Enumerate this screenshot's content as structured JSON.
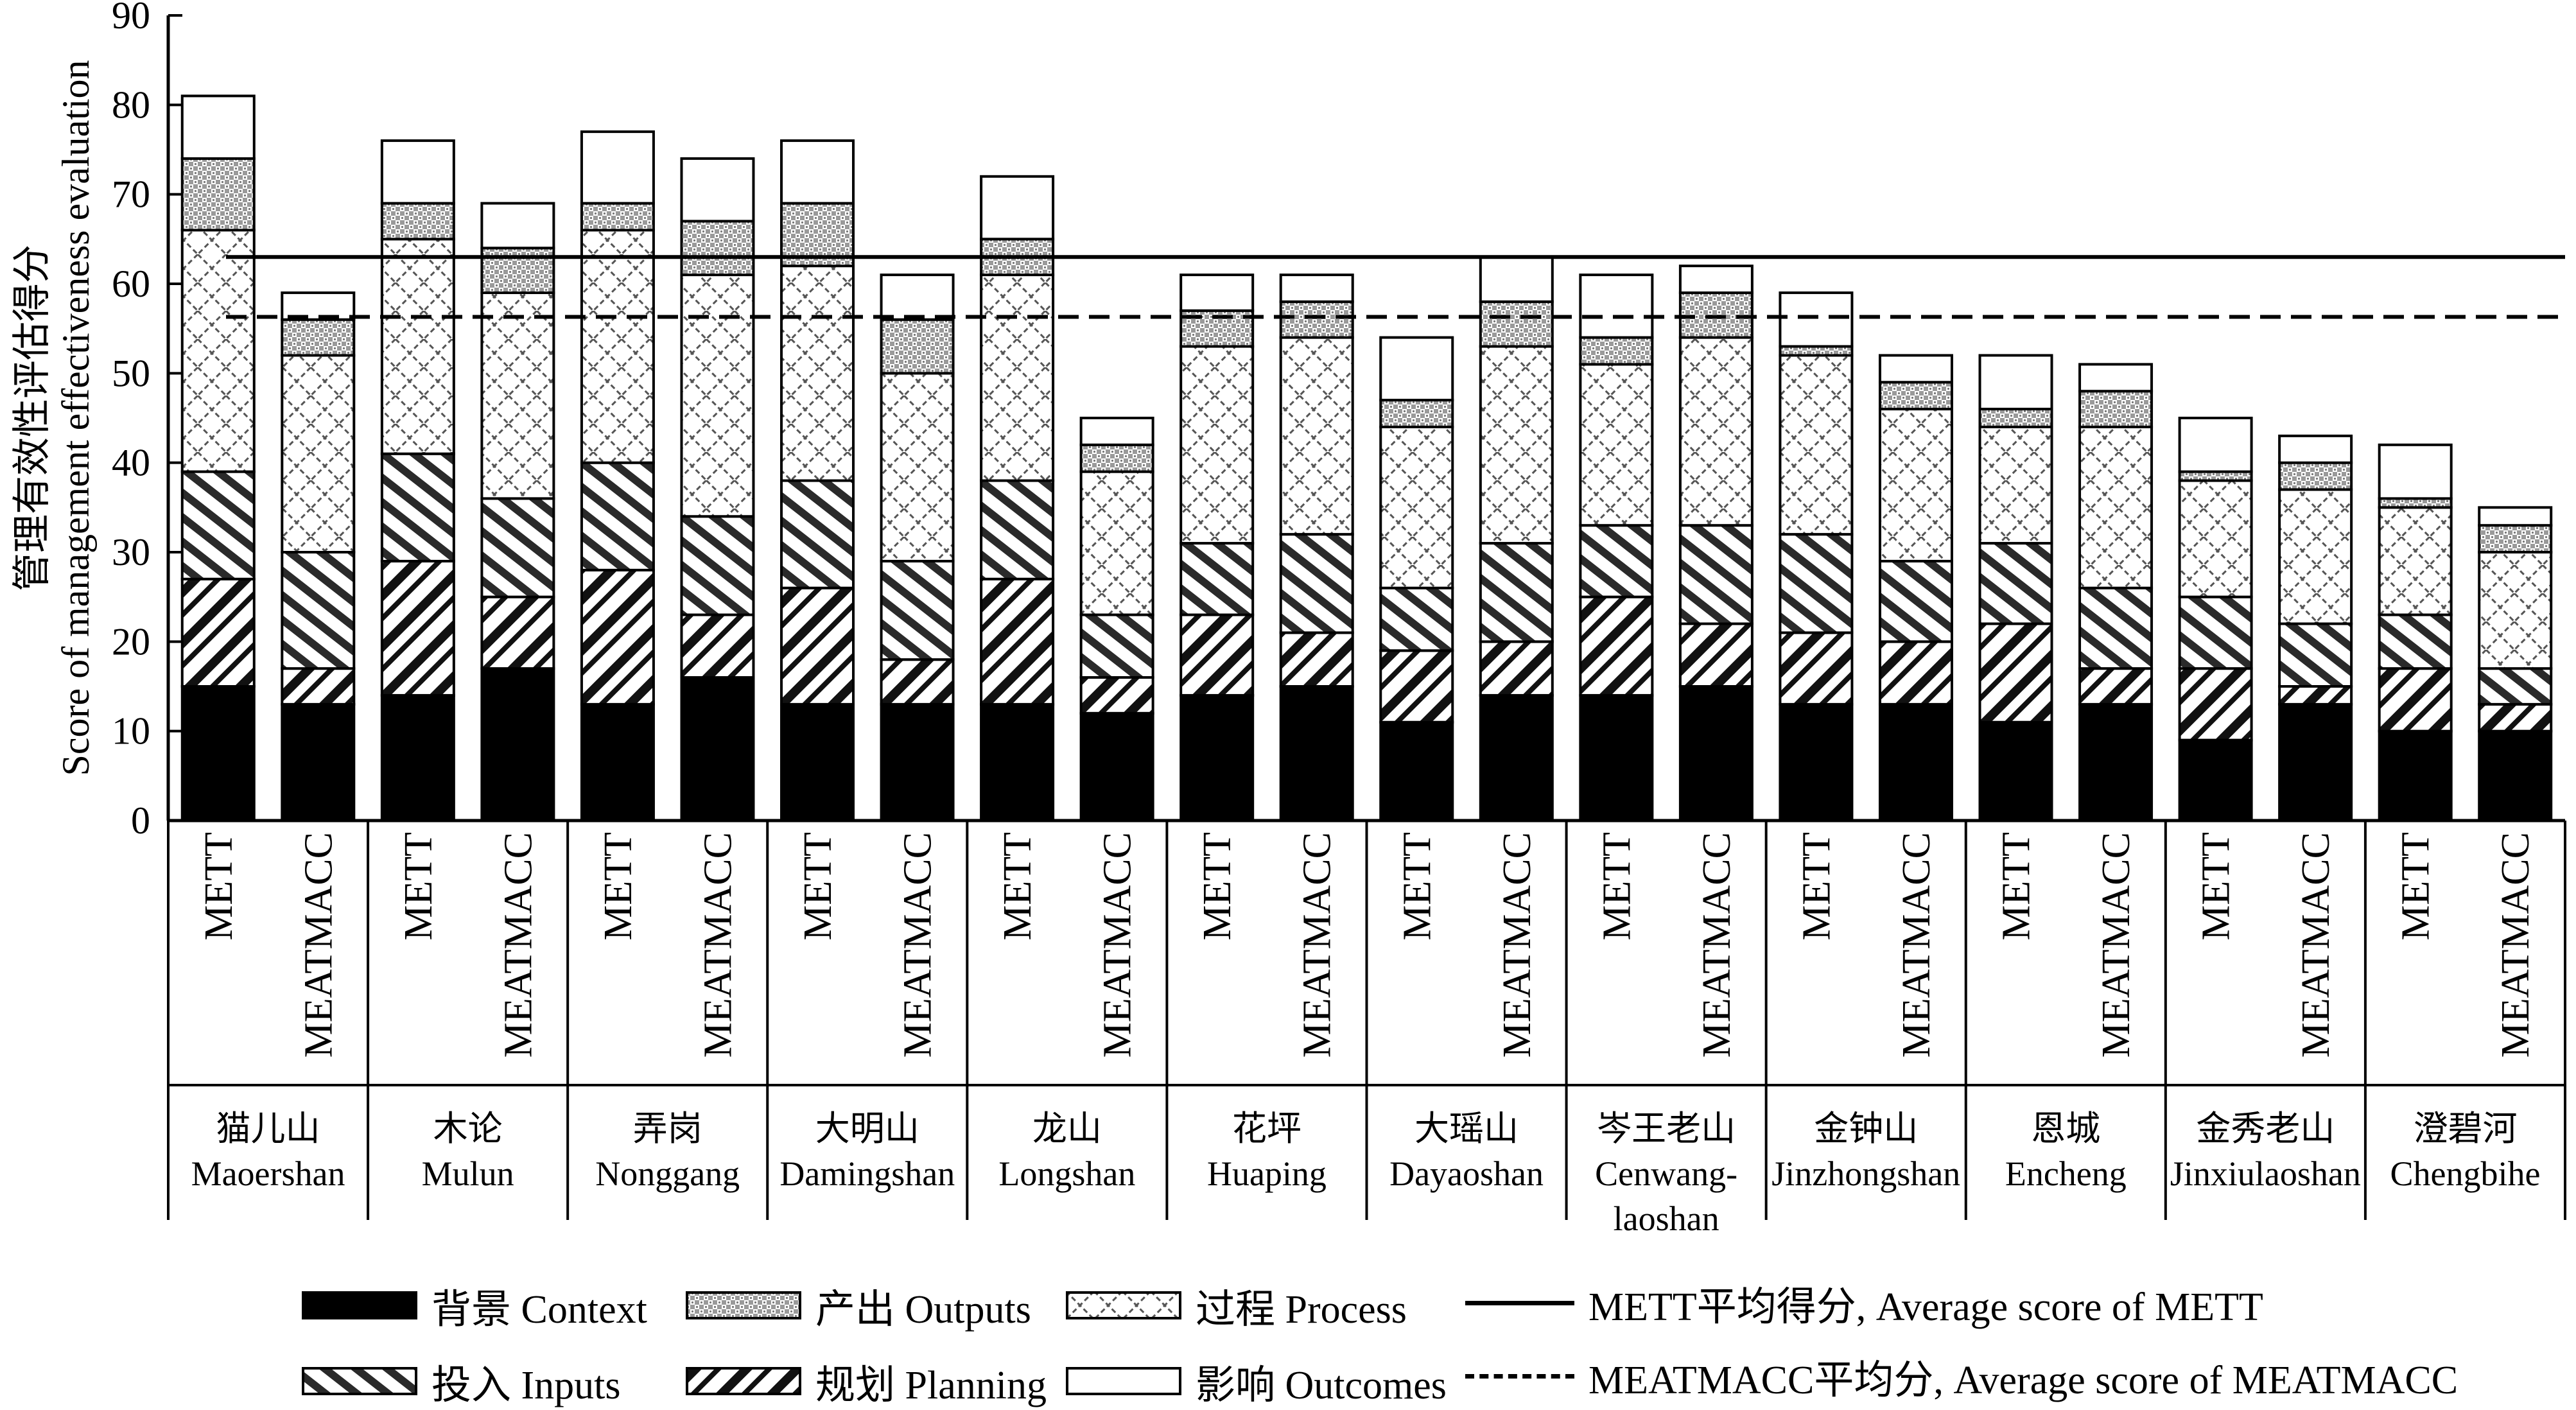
{
  "chart_data": {
    "type": "bar",
    "stacked": true,
    "ylabel_cn": "管理有效性评估得分",
    "ylabel_en": "Score of management effectiveness evaluation",
    "ylim": [
      0,
      90
    ],
    "yticks": [
      0,
      10,
      20,
      30,
      40,
      50,
      60,
      70,
      80,
      90
    ],
    "tool_labels": [
      "METT",
      "MEATMACC"
    ],
    "reserves": [
      {
        "cn": "猫儿山",
        "en": "Maoershan"
      },
      {
        "cn": "木论",
        "en": "Mulun"
      },
      {
        "cn": "弄岗",
        "en": "Nonggang"
      },
      {
        "cn": "大明山",
        "en": "Damingshan"
      },
      {
        "cn": "龙山",
        "en": "Longshan"
      },
      {
        "cn": "花坪",
        "en": "Huaping"
      },
      {
        "cn": "大瑶山",
        "en": "Dayaoshan"
      },
      {
        "cn": "岑王老山",
        "en": "Cenwang-laoshan"
      },
      {
        "cn": "金钟山",
        "en": "Jinzhongshan"
      },
      {
        "cn": "恩城",
        "en": "Encheng"
      },
      {
        "cn": "金秀老山",
        "en": "Jinxiulaoshan"
      },
      {
        "cn": "澄碧河",
        "en": "Chengbihe"
      }
    ],
    "series": [
      {
        "name": "背景 Context",
        "pattern": "solid",
        "values": [
          15,
          13,
          14,
          17,
          13,
          16,
          13,
          13,
          13,
          12,
          14,
          15,
          11,
          14,
          14,
          15,
          13,
          13,
          11,
          13,
          9,
          13,
          10,
          10
        ]
      },
      {
        "name": "规划 Planning",
        "pattern": "planning",
        "values": [
          12,
          4,
          15,
          8,
          15,
          7,
          13,
          5,
          14,
          4,
          9,
          6,
          8,
          6,
          11,
          7,
          8,
          7,
          11,
          4,
          8,
          2,
          7,
          3
        ]
      },
      {
        "name": "投入 Inputs",
        "pattern": "inputs",
        "values": [
          12,
          13,
          12,
          11,
          12,
          11,
          12,
          11,
          11,
          7,
          8,
          11,
          7,
          11,
          8,
          11,
          11,
          9,
          9,
          9,
          8,
          7,
          6,
          4
        ]
      },
      {
        "name": "过程 Process",
        "pattern": "process",
        "values": [
          27,
          22,
          24,
          23,
          26,
          27,
          24,
          21,
          23,
          16,
          22,
          22,
          18,
          22,
          18,
          21,
          20,
          17,
          13,
          18,
          13,
          15,
          12,
          13
        ]
      },
      {
        "name": "产出 Outputs",
        "pattern": "outputs",
        "values": [
          8,
          4,
          4,
          5,
          3,
          6,
          7,
          6,
          4,
          3,
          4,
          4,
          3,
          5,
          3,
          5,
          1,
          3,
          2,
          4,
          1,
          3,
          1,
          3
        ]
      },
      {
        "name": "影响 Outcomes",
        "pattern": "outcomes",
        "values": [
          7,
          3,
          7,
          5,
          8,
          7,
          7,
          5,
          7,
          3,
          4,
          3,
          7,
          5,
          7,
          3,
          6,
          3,
          6,
          3,
          6,
          3,
          6,
          2
        ]
      }
    ],
    "reference_lines": [
      {
        "name": "METT平均得分, Average score of METT",
        "value": 63,
        "style": "solid"
      },
      {
        "name": "MEATMACC平均分, Average score of MEATMACC",
        "value": 56.3,
        "style": "dashed"
      }
    ],
    "legend_placement": "bottom",
    "grid": false
  }
}
